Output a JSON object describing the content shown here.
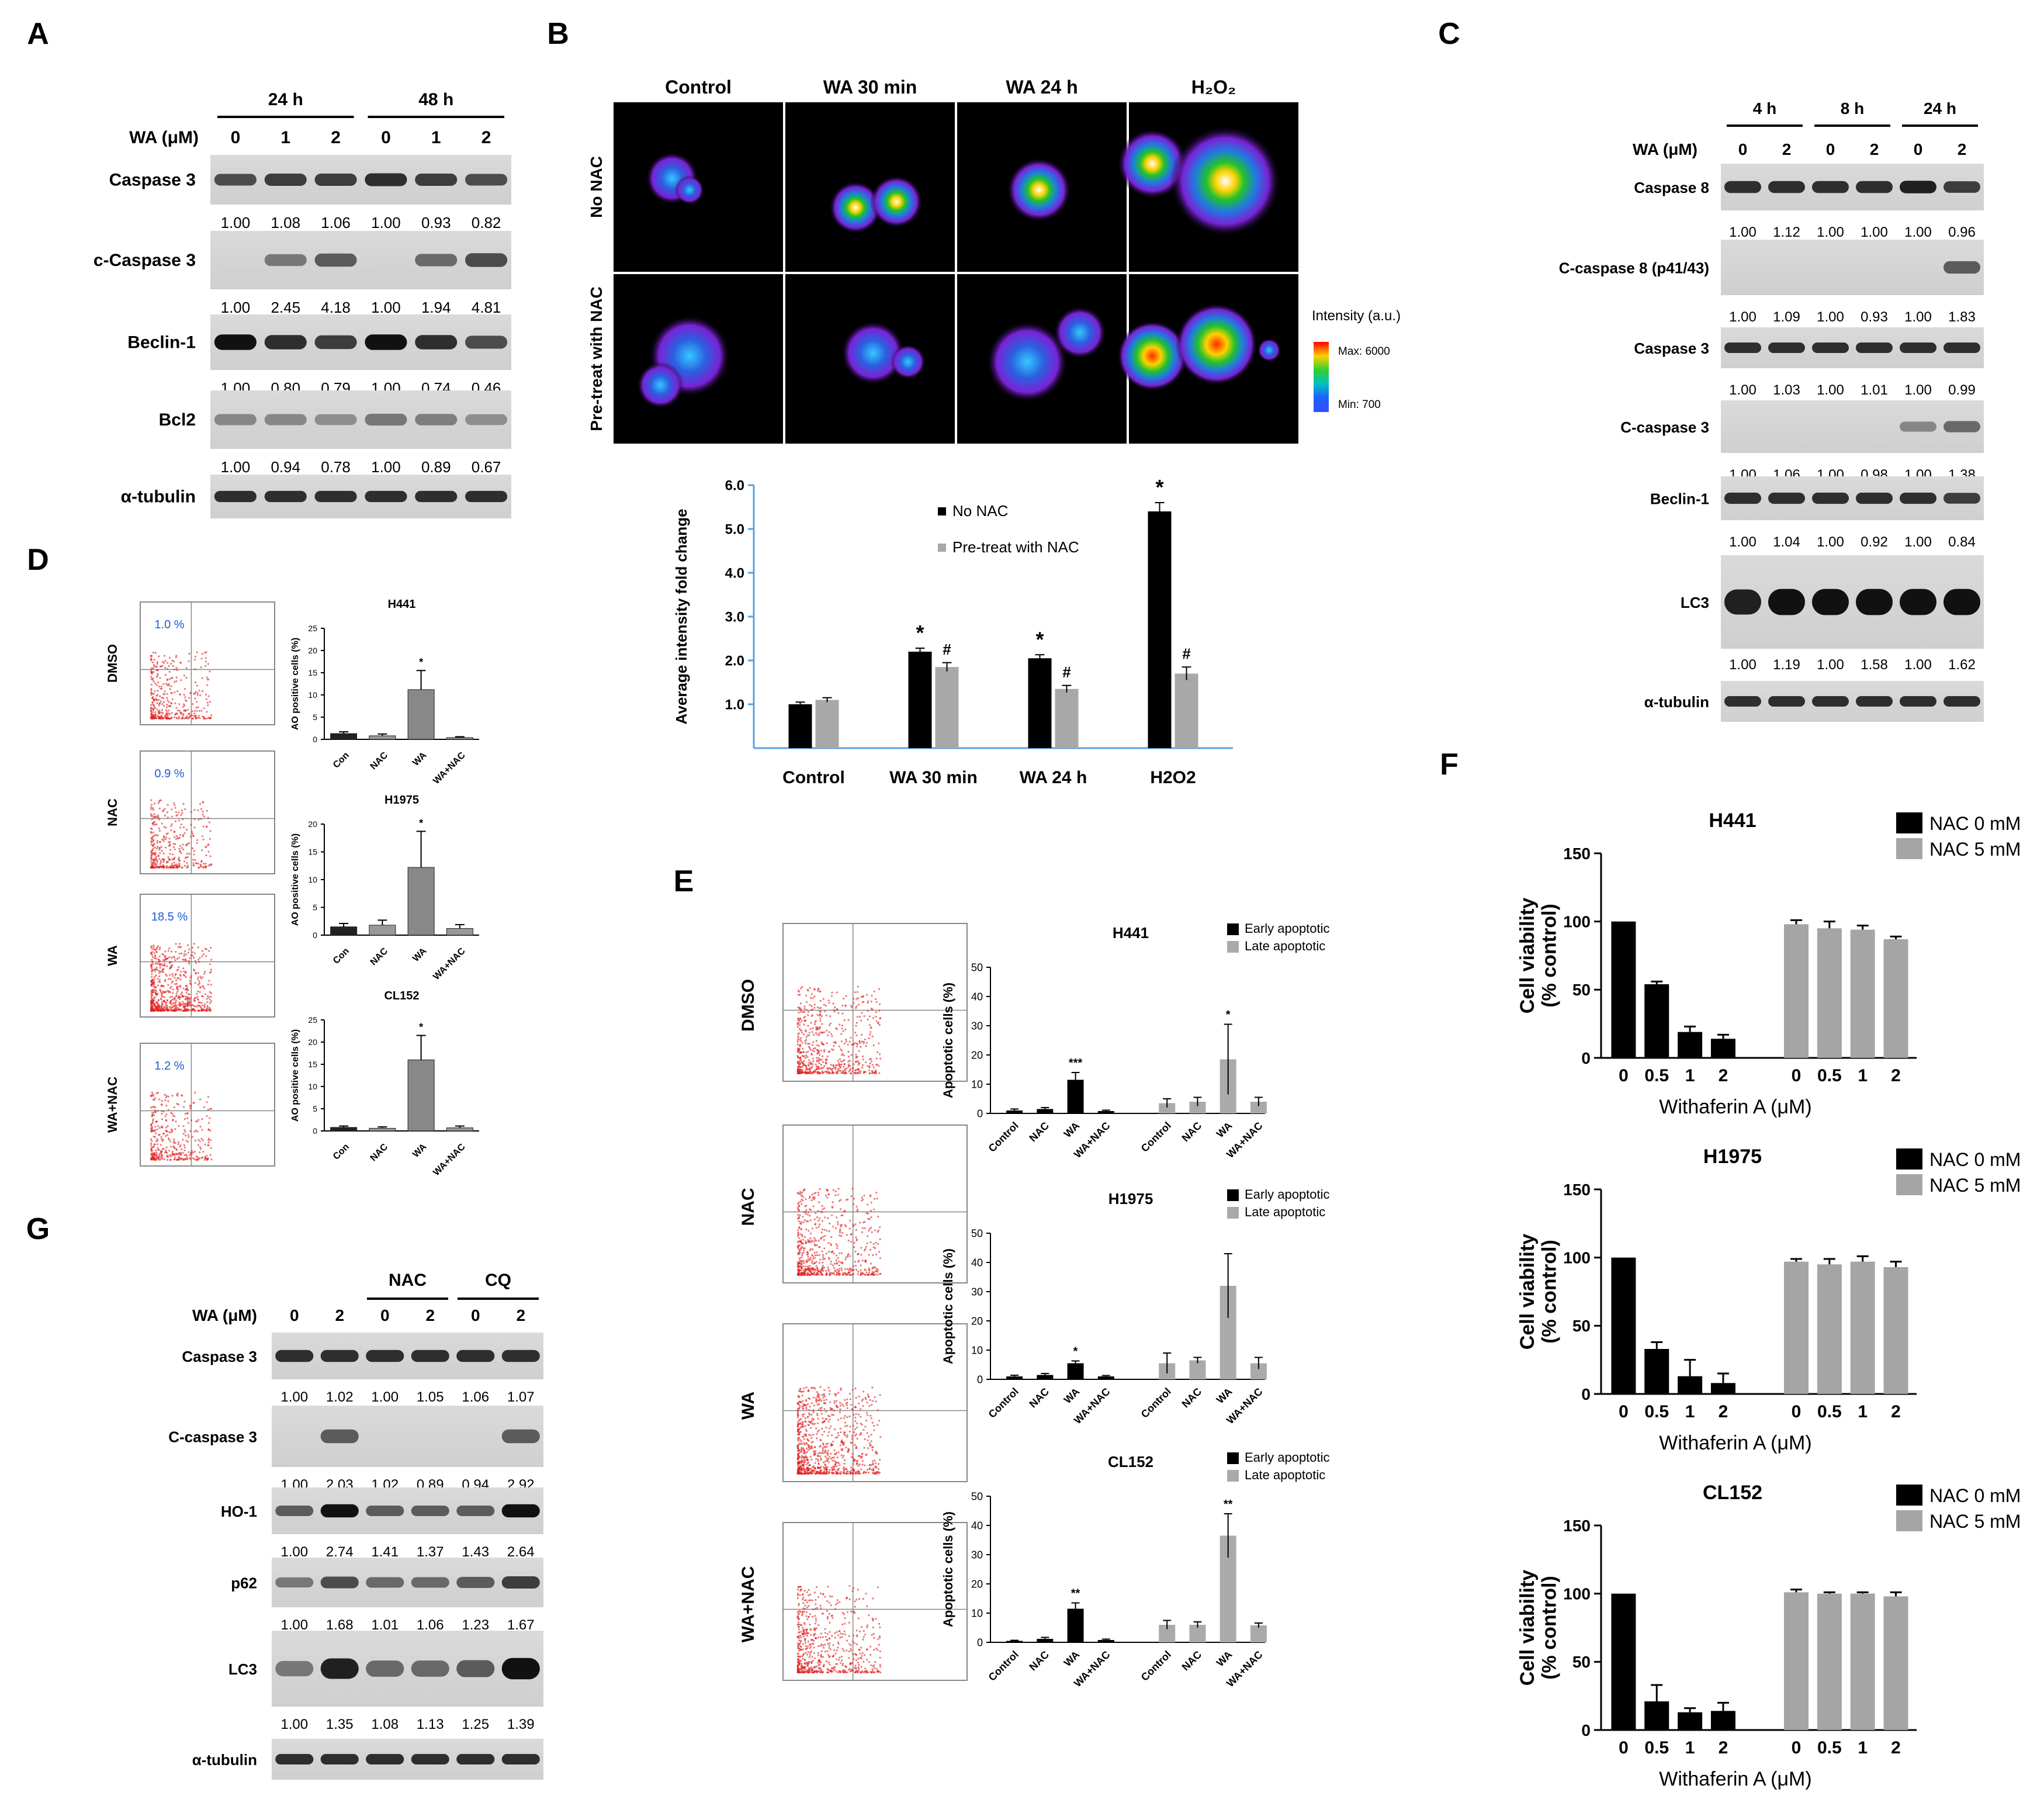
{
  "panel_letters": [
    "A",
    "B",
    "C",
    "D",
    "E",
    "F",
    "G"
  ],
  "panelA": {
    "time_headers": [
      "24 h",
      "48 h"
    ],
    "wa_label": "WA (μM)",
    "doses": [
      "0",
      "1",
      "2",
      "0",
      "1",
      "2"
    ],
    "blots": [
      {
        "name": "Caspase 3",
        "values": [
          "1.00",
          "1.08",
          "1.06",
          "1.00",
          "0.93",
          "0.82"
        ]
      },
      {
        "name": "c-Caspase 3",
        "values": [
          "1.00",
          "2.45",
          "4.18",
          "1.00",
          "1.94",
          "4.81"
        ]
      },
      {
        "name": "Beclin-1",
        "values": [
          "1.00",
          "0.80",
          "0.79",
          "1.00",
          "0.74",
          "0.46"
        ]
      },
      {
        "name": "Bcl2",
        "values": [
          "1.00",
          "0.94",
          "0.78",
          "1.00",
          "0.89",
          "0.67"
        ]
      },
      {
        "name": "α-tubulin",
        "values": []
      }
    ]
  },
  "panelB": {
    "columns": [
      "Control",
      "WA 30 min",
      "WA 24 h",
      "H₂O₂"
    ],
    "rows": [
      "No NAC",
      "Pre-treat with NAC"
    ],
    "colorbar": {
      "title": "Intensity (a.u.)",
      "max": "Max: 6000",
      "min": "Min: 700"
    }
  },
  "panelC": {
    "time_headers": [
      "4 h",
      "8 h",
      "24 h"
    ],
    "wa_label": "WA (μM)",
    "doses": [
      "0",
      "2",
      "0",
      "2",
      "0",
      "2"
    ],
    "blots": [
      {
        "name": "Caspase 8",
        "values": [
          "1.00",
          "1.12",
          "1.00",
          "1.00",
          "1.00",
          "0.96"
        ]
      },
      {
        "name": "C-caspase 8 (p41/43)",
        "values": [
          "1.00",
          "1.09",
          "1.00",
          "0.93",
          "1.00",
          "1.83"
        ]
      },
      {
        "name": "Caspase 3",
        "values": [
          "1.00",
          "1.03",
          "1.00",
          "1.01",
          "1.00",
          "0.99"
        ]
      },
      {
        "name": "C-caspase 3",
        "values": [
          "1.00",
          "1.06",
          "1.00",
          "0.98",
          "1.00",
          "1.38"
        ]
      },
      {
        "name": "Beclin-1",
        "values": [
          "1.00",
          "1.04",
          "1.00",
          "0.92",
          "1.00",
          "0.84"
        ]
      },
      {
        "name": "LC3",
        "values": [
          "1.00",
          "1.19",
          "1.00",
          "1.58",
          "1.00",
          "1.62"
        ]
      },
      {
        "name": "α-tubulin",
        "values": []
      }
    ]
  },
  "panelD": {
    "flow_rows": [
      {
        "label": "DMSO",
        "pct": "1.0 %"
      },
      {
        "label": "NAC",
        "pct": "0.9 %"
      },
      {
        "label": "WA",
        "pct": "18.5 %"
      },
      {
        "label": "WA+NAC",
        "pct": "1.2 %"
      }
    ]
  },
  "panelE": {
    "flow_rows": [
      "DMSO",
      "NAC",
      "WA",
      "WA+NAC"
    ],
    "legend": [
      "Early apoptotic",
      "Late apoptotic"
    ]
  },
  "panelF": {
    "xlabel": "Withaferin A (μM)",
    "ylabel": "Cell viability (% control)",
    "legend": [
      "NAC 0 mM",
      "NAC 5 mM"
    ]
  },
  "panelG": {
    "group_headers": [
      "NAC",
      "CQ"
    ],
    "wa_label": "WA (μM)",
    "doses": [
      "0",
      "2",
      "0",
      "2",
      "0",
      "2"
    ],
    "blots": [
      {
        "name": "Caspase 3",
        "values": [
          "1.00",
          "1.02",
          "1.00",
          "1.05",
          "1.06",
          "1.07"
        ]
      },
      {
        "name": "C-caspase 3",
        "values": [
          "1.00",
          "2.03",
          "1.02",
          "0.89",
          "0.94",
          "2.92"
        ]
      },
      {
        "name": "HO-1",
        "values": [
          "1.00",
          "2.74",
          "1.41",
          "1.37",
          "1.43",
          "2.64"
        ]
      },
      {
        "name": "p62",
        "values": [
          "1.00",
          "1.68",
          "1.01",
          "1.06",
          "1.23",
          "1.67"
        ]
      },
      {
        "name": "LC3",
        "values": [
          "1.00",
          "1.35",
          "1.08",
          "1.13",
          "1.25",
          "1.39"
        ]
      },
      {
        "name": "α-tubulin",
        "values": []
      }
    ]
  },
  "chart_data": [
    {
      "id": "B",
      "type": "bar",
      "categories": [
        "Control",
        "WA 30 min",
        "WA 24 h",
        "H2O2"
      ],
      "ylabel": "Average intensity fold change",
      "ylim": [
        0,
        6
      ],
      "yticks": [
        "1.0",
        "2.0",
        "3.0",
        "4.0",
        "5.0",
        "6.0"
      ],
      "series": [
        {
          "name": "No NAC",
          "values": [
            1.0,
            2.2,
            2.05,
            5.4
          ],
          "err": [
            0.05,
            0.08,
            0.08,
            0.2
          ],
          "color": "#000000"
        },
        {
          "name": "Pre-treat with NAC",
          "values": [
            1.1,
            1.85,
            1.35,
            1.7
          ],
          "err": [
            0.05,
            0.1,
            0.08,
            0.15
          ],
          "color": "#a8a8a8"
        }
      ],
      "annotations": {
        "No NAC": [
          "",
          "*",
          "*",
          "*"
        ],
        "Pre-treat with NAC": [
          "",
          "#",
          "#",
          "#"
        ]
      }
    },
    {
      "id": "D1",
      "type": "bar",
      "title": "H441",
      "ylabel": "AO positive cells (%)",
      "ylim": [
        0,
        25
      ],
      "yticks": [
        "0",
        "5",
        "10",
        "15",
        "20",
        "25"
      ],
      "categories": [
        "Con",
        "NAC",
        "WA",
        "WA+NAC"
      ],
      "values": [
        1.3,
        0.8,
        11.2,
        0.4
      ],
      "err": [
        0.4,
        0.4,
        4.3,
        0.2
      ],
      "sig": [
        "",
        "",
        "*",
        ""
      ]
    },
    {
      "id": "D2",
      "type": "bar",
      "title": "H1975",
      "ylabel": "AO positive cells (%)",
      "ylim": [
        0,
        20
      ],
      "yticks": [
        "0",
        "5",
        "10",
        "15",
        "20"
      ],
      "categories": [
        "Con",
        "NAC",
        "WA",
        "WA+NAC"
      ],
      "values": [
        1.5,
        1.8,
        12.2,
        1.2
      ],
      "err": [
        0.6,
        0.9,
        6.5,
        0.7
      ],
      "sig": [
        "",
        "",
        "*",
        ""
      ]
    },
    {
      "id": "D3",
      "type": "bar",
      "title": "CL152",
      "ylabel": "AO positive cells (%)",
      "ylim": [
        0,
        25
      ],
      "yticks": [
        "0",
        "5",
        "10",
        "15",
        "20",
        "25"
      ],
      "categories": [
        "Con",
        "NAC",
        "WA",
        "WA+NAC"
      ],
      "values": [
        0.8,
        0.6,
        16.0,
        0.7
      ],
      "err": [
        0.3,
        0.3,
        5.5,
        0.4
      ],
      "sig": [
        "",
        "",
        "*",
        ""
      ]
    },
    {
      "id": "E1",
      "type": "bar",
      "title": "H441",
      "ylabel": "Apoptotic cells (%)",
      "ylim": [
        0,
        50
      ],
      "yticks": [
        "0",
        "10",
        "20",
        "30",
        "40",
        "50"
      ],
      "categories": [
        "Control",
        "NAC",
        "WA",
        "WA+NAC",
        "Control",
        "NAC",
        "WA",
        "WA+NAC"
      ],
      "values": [
        1.0,
        1.5,
        11.5,
        0.8,
        3.5,
        4.0,
        18.5,
        4.0
      ],
      "err": [
        0.5,
        0.5,
        2.5,
        0.3,
        1.5,
        1.5,
        12.0,
        1.5
      ],
      "sig": [
        "",
        "",
        "***",
        "",
        "",
        "",
        "*",
        ""
      ]
    },
    {
      "id": "E2",
      "type": "bar",
      "title": "H1975",
      "ylabel": "Apoptotic cells (%)",
      "ylim": [
        0,
        50
      ],
      "yticks": [
        "0",
        "10",
        "20",
        "30",
        "40",
        "50"
      ],
      "categories": [
        "Control",
        "NAC",
        "WA",
        "WA+NAC",
        "Control",
        "NAC",
        "WA",
        "WA+NAC"
      ],
      "values": [
        1.0,
        1.5,
        5.5,
        1.0,
        5.5,
        6.5,
        32.0,
        5.5
      ],
      "err": [
        0.4,
        0.5,
        0.8,
        0.3,
        3.5,
        1.0,
        11.0,
        2.0
      ],
      "sig": [
        "",
        "",
        "*",
        "",
        "",
        "",
        "",
        ""
      ]
    },
    {
      "id": "E3",
      "type": "bar",
      "title": "CL152",
      "ylabel": "Apoptotic cells (%)",
      "ylim": [
        0,
        50
      ],
      "yticks": [
        "0",
        "10",
        "20",
        "30",
        "40",
        "50"
      ],
      "categories": [
        "Control",
        "NAC",
        "WA",
        "WA+NAC",
        "Control",
        "NAC",
        "WA",
        "WA+NAC"
      ],
      "values": [
        0.5,
        1.2,
        11.5,
        0.8,
        6.0,
        6.0,
        36.5,
        5.8
      ],
      "err": [
        0.2,
        0.5,
        2.0,
        0.3,
        1.5,
        1.0,
        7.5,
        0.8
      ],
      "sig": [
        "",
        "",
        "**",
        "",
        "",
        "",
        "**",
        ""
      ]
    },
    {
      "id": "F1",
      "type": "bar",
      "title": "H441",
      "ylabel": "Cell viability (% control)",
      "xlabel": "Withaferin A (μM)",
      "ylim": [
        0,
        150
      ],
      "yticks": [
        "0",
        "50",
        "100",
        "150"
      ],
      "categories": [
        "0",
        "0.5",
        "1",
        "2",
        "0",
        "0.5",
        "1",
        "2"
      ],
      "values": [
        100,
        54,
        19,
        14,
        98,
        95,
        94,
        87
      ],
      "err": [
        0,
        2,
        4,
        3,
        3,
        5,
        3,
        2
      ]
    },
    {
      "id": "F2",
      "type": "bar",
      "title": "H1975",
      "ylabel": "Cell viability (% control)",
      "xlabel": "Withaferin A (μM)",
      "ylim": [
        0,
        150
      ],
      "yticks": [
        "0",
        "50",
        "100",
        "150"
      ],
      "categories": [
        "0",
        "0.5",
        "1",
        "2",
        "0",
        "0.5",
        "1",
        "2"
      ],
      "values": [
        100,
        33,
        13,
        8,
        97,
        95,
        97,
        93
      ],
      "err": [
        0,
        5,
        12,
        7,
        2,
        4,
        4,
        4
      ]
    },
    {
      "id": "F3",
      "type": "bar",
      "title": "CL152",
      "ylabel": "Cell viability (% control)",
      "xlabel": "Withaferin A (μM)",
      "ylim": [
        0,
        150
      ],
      "yticks": [
        "0",
        "50",
        "100",
        "150"
      ],
      "categories": [
        "0",
        "0.5",
        "1",
        "2",
        "0",
        "0.5",
        "1",
        "2"
      ],
      "values": [
        100,
        21,
        13,
        14,
        101,
        100,
        100,
        98
      ],
      "err": [
        0,
        12,
        3,
        6,
        2,
        1,
        1,
        3
      ]
    }
  ]
}
